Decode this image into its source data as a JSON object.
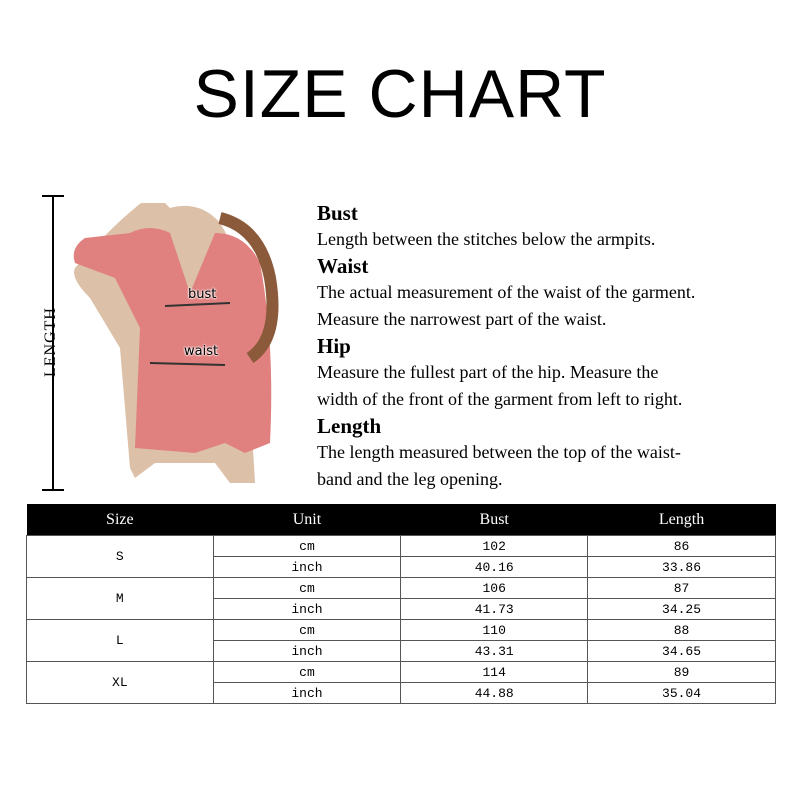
{
  "title": "SIZE CHART",
  "diagram": {
    "length_label": "LENGTH",
    "bust_label": "bust",
    "waist_label": "waist",
    "robe_color": "#e0817f"
  },
  "descriptions": [
    {
      "heading": "Bust",
      "lines": [
        "Length between the stitches below the armpits."
      ]
    },
    {
      "heading": "Waist",
      "lines": [
        "The actual measurement of the waist of the garment.",
        "Measure the narrowest part of the waist."
      ]
    },
    {
      "heading": "Hip",
      "lines": [
        "Measure the fullest part of the  hip. Measure the",
        "width of the front of the garment from left to right."
      ]
    },
    {
      "heading": "Length",
      "lines": [
        "The length measured between the top of the waist-",
        "band and the leg opening."
      ]
    }
  ],
  "table": {
    "headers": [
      "Size",
      "Unit",
      "Bust",
      "Length"
    ],
    "rows": [
      {
        "size": "S",
        "cm": {
          "unit": "cm",
          "bust": "102",
          "length": "86"
        },
        "inch": {
          "unit": "inch",
          "bust": "40.16",
          "length": "33.86"
        }
      },
      {
        "size": "M",
        "cm": {
          "unit": "cm",
          "bust": "106",
          "length": "87"
        },
        "inch": {
          "unit": "inch",
          "bust": "41.73",
          "length": "34.25"
        }
      },
      {
        "size": "L",
        "cm": {
          "unit": "cm",
          "bust": "110",
          "length": "88"
        },
        "inch": {
          "unit": "inch",
          "bust": "43.31",
          "length": "34.65"
        }
      },
      {
        "size": "XL",
        "cm": {
          "unit": "cm",
          "bust": "114",
          "length": "89"
        },
        "inch": {
          "unit": "inch",
          "bust": "44.88",
          "length": "35.04"
        }
      }
    ]
  }
}
